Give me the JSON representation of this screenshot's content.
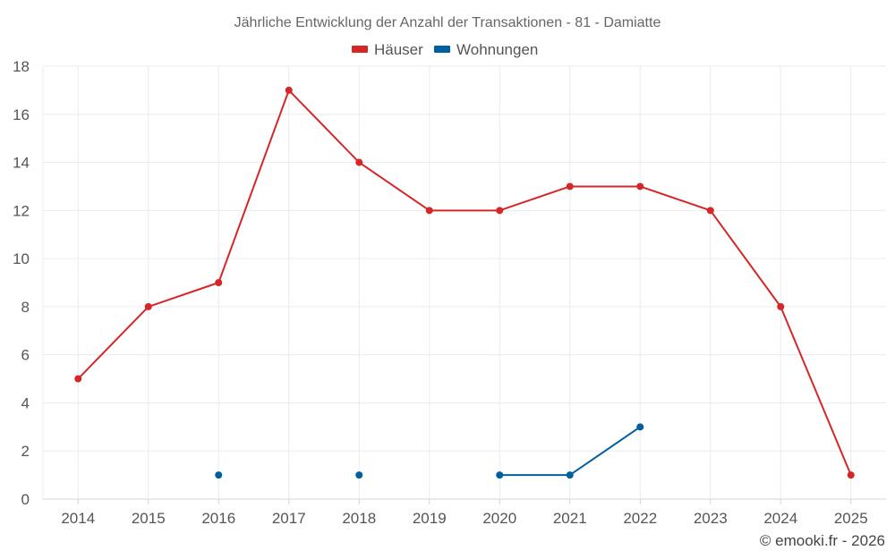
{
  "chart_data": {
    "type": "line",
    "title": "Jährliche Entwicklung der Anzahl der Transaktionen - 81 - Damiatte",
    "categories": [
      "2014",
      "2015",
      "2016",
      "2017",
      "2018",
      "2019",
      "2020",
      "2021",
      "2022",
      "2023",
      "2024",
      "2025"
    ],
    "ylim": [
      0,
      18
    ],
    "yticks": [
      0,
      2,
      4,
      6,
      8,
      10,
      12,
      14,
      16,
      18
    ],
    "grid": true,
    "legend_position": "top-center",
    "series": [
      {
        "name": "Häuser",
        "color": "#d62728",
        "values": [
          5,
          8,
          9,
          17,
          14,
          12,
          12,
          13,
          13,
          12,
          8,
          1
        ]
      },
      {
        "name": "Wohnungen",
        "color": "#005f9e",
        "values": [
          null,
          null,
          1,
          null,
          1,
          null,
          1,
          1,
          3,
          null,
          null,
          null
        ]
      }
    ]
  },
  "credit": "© emooki.fr - 2026"
}
